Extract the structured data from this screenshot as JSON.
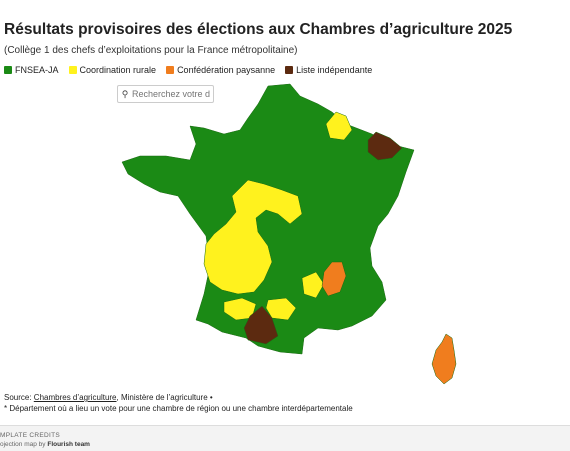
{
  "header": {
    "title": "Résultats provisoires des élections aux Chambres d’agriculture 2025",
    "subtitle": "(Collège 1 des chefs d’exploitations pour la France métropolitaine)"
  },
  "legend": [
    {
      "label": "FNSEA-JA",
      "color": "#1b8a15"
    },
    {
      "label": "Coordination rurale",
      "color": "#fff21e"
    },
    {
      "label": "Confédération paysanne",
      "color": "#f07d1e"
    },
    {
      "label": "Liste indépendante",
      "color": "#5c2a10"
    }
  ],
  "search": {
    "placeholder": "Recherchez votre dép"
  },
  "source": {
    "prefix": "Source: ",
    "link": "Chambres d’agriculture",
    "suffix": ", Ministère de l’agriculture •"
  },
  "footnote": "* Département où a lieu un vote pour une chambre de région ou une chambre interdépartementale",
  "footer": {
    "credits_title": "MPLATE CREDITS",
    "credits_line_prefix": "ojection map by ",
    "credits_line_author": "Flourish team"
  },
  "colors": {
    "fnsea": "#1b8a15",
    "coordination": "#fff21e",
    "confederation": "#f07d1e",
    "independante": "#5c2a10"
  }
}
